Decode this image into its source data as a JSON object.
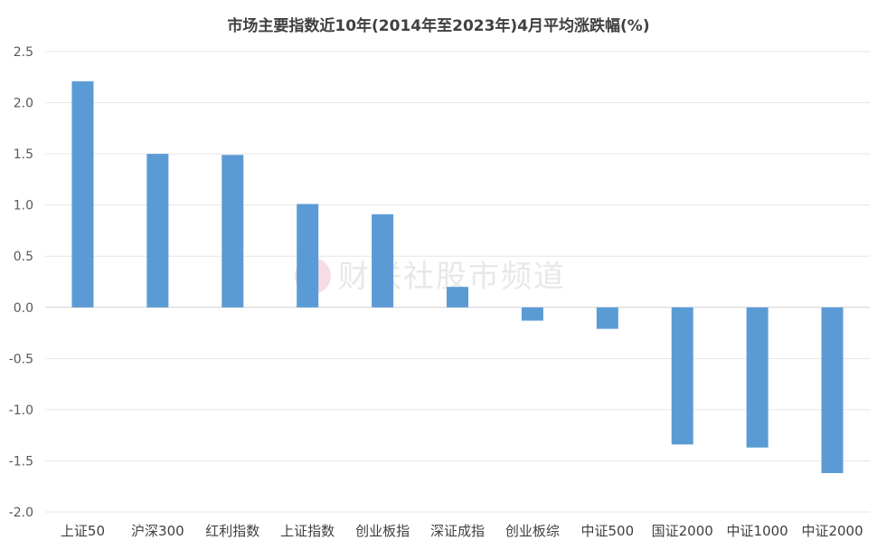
{
  "chart_data": {
    "type": "bar",
    "title": "市场主要指数近10年(2014年至2023年)4月平均涨跌幅(%)",
    "categories": [
      "上证50",
      "沪深300",
      "红利指数",
      "上证指数",
      "创业板指",
      "深证成指",
      "创业板综",
      "中证500",
      "国证2000",
      "中证1000",
      "中证2000"
    ],
    "values": [
      2.21,
      1.5,
      1.49,
      1.01,
      0.91,
      0.2,
      -0.13,
      -0.21,
      -1.34,
      -1.37,
      -1.62
    ],
    "ylim": [
      -2.0,
      2.5
    ],
    "yticks": [
      "2.5",
      "2.0",
      "1.5",
      "1.0",
      "0.5",
      "0.0",
      "-0.5",
      "-1.0",
      "-1.5",
      "-2.0"
    ],
    "grid": true,
    "bar_color": "#5b9bd5",
    "watermark": "财联社股市频道"
  }
}
